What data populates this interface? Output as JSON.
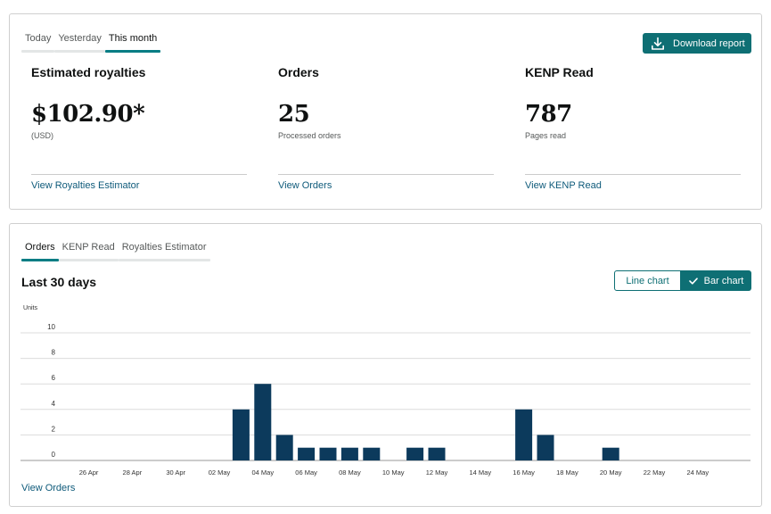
{
  "summary": {
    "tabs": [
      "Today",
      "Yesterday",
      "This month"
    ],
    "active_tab": 2,
    "download_label": "Download report",
    "metrics": [
      {
        "title": "Estimated royalties",
        "value": "$102.90*",
        "sub": "(USD)",
        "link": "View Royalties Estimator"
      },
      {
        "title": "Orders",
        "value": "25",
        "sub": "Processed orders",
        "link": "View Orders"
      },
      {
        "title": "KENP Read",
        "value": "787",
        "sub": "Pages read",
        "link": "View KENP Read"
      }
    ]
  },
  "chart_panel": {
    "tabs": [
      "Orders",
      "KENP Read",
      "Royalties Estimator"
    ],
    "active_tab": 0,
    "title": "Last 30 days",
    "toggle": {
      "line": "Line chart",
      "bar": "Bar chart",
      "selected": "bar"
    },
    "footer_link": "View Orders"
  },
  "colors": {
    "accent": "#0e6f74",
    "bar": "#0c3a5c",
    "link": "#0e5a7a"
  },
  "chart_data": {
    "type": "bar",
    "ylabel": "Units",
    "ylim": [
      0,
      10
    ],
    "yticks": [
      0,
      2,
      4,
      6,
      8,
      10
    ],
    "categories": [
      "25 Apr",
      "26 Apr",
      "27 Apr",
      "28 Apr",
      "29 Apr",
      "30 Apr",
      "01 May",
      "02 May",
      "03 May",
      "04 May",
      "05 May",
      "06 May",
      "07 May",
      "08 May",
      "09 May",
      "10 May",
      "11 May",
      "12 May",
      "13 May",
      "14 May",
      "15 May",
      "16 May",
      "17 May",
      "18 May",
      "19 May",
      "20 May",
      "21 May",
      "22 May",
      "23 May",
      "24 May",
      "25 May"
    ],
    "values": [
      0,
      0,
      0,
      0,
      0,
      0,
      0,
      0,
      4,
      6,
      2,
      1,
      1,
      1,
      1,
      0,
      1,
      1,
      0,
      0,
      0,
      4,
      2,
      0,
      0,
      1,
      0,
      0,
      0,
      0,
      0
    ],
    "tick_labels": [
      "26 Apr",
      "28 Apr",
      "30 Apr",
      "02 May",
      "04 May",
      "06 May",
      "08 May",
      "10 May",
      "12 May",
      "14 May",
      "16 May",
      "18 May",
      "20 May",
      "22 May",
      "24 May"
    ]
  }
}
